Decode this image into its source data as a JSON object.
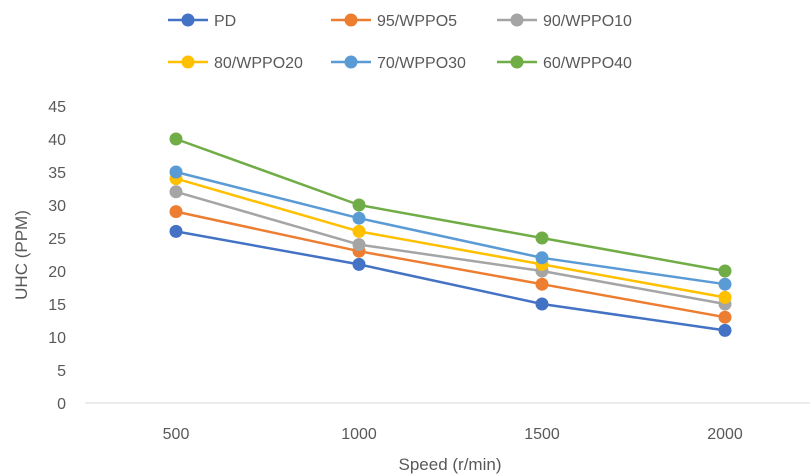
{
  "chart_data": {
    "type": "line",
    "title": "",
    "xlabel": "Speed (r/min)",
    "ylabel": "UHC (PPM)",
    "categories": [
      "500",
      "1000",
      "1500",
      "2000"
    ],
    "ylim": [
      0,
      45
    ],
    "yticks": [
      "0",
      "5",
      "10",
      "15",
      "20",
      "25",
      "30",
      "35",
      "40",
      "45"
    ],
    "grid": false,
    "legend_position": "top",
    "series": [
      {
        "name": "PD",
        "color": "#4472C4",
        "values": [
          26,
          21,
          15,
          11
        ]
      },
      {
        "name": "95/WPPO5",
        "color": "#ED7D31",
        "values": [
          29,
          23,
          18,
          13
        ]
      },
      {
        "name": "90/WPPO10",
        "color": "#A5A5A5",
        "values": [
          32,
          24,
          20,
          15
        ]
      },
      {
        "name": "80/WPPO20",
        "color": "#FFC000",
        "values": [
          34,
          26,
          21,
          16
        ]
      },
      {
        "name": "70/WPPO30",
        "color": "#5B9BD5",
        "values": [
          35,
          28,
          22,
          18
        ]
      },
      {
        "name": "60/WPPO40",
        "color": "#70AD47",
        "values": [
          40,
          30,
          25,
          20
        ]
      }
    ]
  }
}
